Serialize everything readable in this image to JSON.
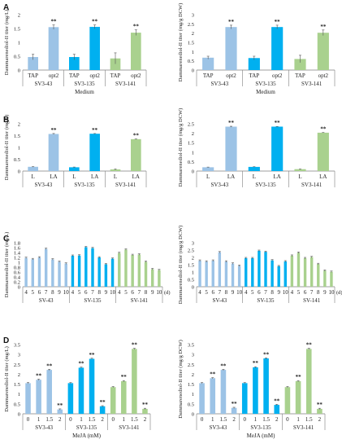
{
  "figure": {
    "panel_letters": [
      "A",
      "B",
      "C",
      "D"
    ],
    "colors": {
      "SV3-43": "#9cc3e6",
      "SV3-135": "#00b0f0",
      "SV3-141": "#a9d18e",
      "axis": "#7f7f7f",
      "grid_text": "#222222"
    }
  },
  "chart_data": [
    {
      "id": "A-left",
      "panel": "A",
      "type": "bar",
      "ylabel": "Dammarenediol-II titer (mg/L)",
      "ylim": [
        0,
        2
      ],
      "yticks": [
        "0",
        "0.5",
        "1",
        "1.5",
        "2"
      ],
      "categories": [
        "TAP",
        "opt2",
        "TAP",
        "opt2",
        "TAP",
        "opt2"
      ],
      "groups": [
        "SV3-43",
        "SV3-135",
        "SV3-141"
      ],
      "group_size": 2,
      "xlabel": "Medium",
      "values": [
        0.47,
        1.55,
        0.47,
        1.56,
        0.42,
        1.35
      ],
      "errors": [
        0.1,
        0.08,
        0.1,
        0.07,
        0.2,
        0.1
      ],
      "annotations": [
        "",
        "**",
        "",
        "**",
        "",
        "**"
      ]
    },
    {
      "id": "A-right",
      "panel": "A",
      "type": "bar",
      "ylabel": "Dammarenediol-II titer (mg/g DCW)",
      "ylim": [
        0,
        3
      ],
      "yticks": [
        "0",
        "0.5",
        "1",
        "1.5",
        "2",
        "2.5",
        "3"
      ],
      "categories": [
        "TAP",
        "opt2",
        "TAP",
        "opt2",
        "TAP",
        "opt2"
      ],
      "groups": [
        "SV3-43",
        "SV3-135",
        "SV3-141"
      ],
      "group_size": 2,
      "xlabel": "Medium",
      "values": [
        0.67,
        2.33,
        0.65,
        2.33,
        0.6,
        2.02
      ],
      "errors": [
        0.08,
        0.1,
        0.1,
        0.1,
        0.2,
        0.15
      ],
      "annotations": [
        "",
        "**",
        "",
        "**",
        "",
        "**"
      ]
    },
    {
      "id": "B-left",
      "panel": "B",
      "type": "bar",
      "ylabel": "Dammarenediol-II titer (mg/L)",
      "ylim": [
        0,
        2
      ],
      "yticks": [
        "0",
        "0.5",
        "1",
        "1.5",
        "2"
      ],
      "categories": [
        "L",
        "LA",
        "L",
        "LA",
        "L",
        "LA"
      ],
      "groups": [
        "SV3-43",
        "SV3-135",
        "SV3-141"
      ],
      "group_size": 2,
      "xlabel": "",
      "values": [
        0.18,
        1.57,
        0.16,
        1.58,
        0.07,
        1.35
      ],
      "errors": [
        0.01,
        0.02,
        0.01,
        0.01,
        0.02,
        0.01
      ],
      "annotations": [
        "",
        "**",
        "",
        "**",
        "",
        "**"
      ]
    },
    {
      "id": "B-right",
      "panel": "B",
      "type": "bar",
      "ylabel": "Dammarenediol-II titer (mg/g DCW)",
      "ylim": [
        0,
        2.5
      ],
      "yticks": [
        "0",
        "0.5",
        "1",
        "1.5",
        "2",
        "2.5"
      ],
      "categories": [
        "L",
        "LA",
        "L",
        "LA",
        "L",
        "LA"
      ],
      "groups": [
        "SV3-43",
        "SV3-135",
        "SV3-141"
      ],
      "group_size": 2,
      "xlabel": "",
      "values": [
        0.2,
        2.35,
        0.22,
        2.35,
        0.1,
        2.03
      ],
      "errors": [
        0.01,
        0.02,
        0.01,
        0.01,
        0.01,
        0.01
      ],
      "annotations": [
        "",
        "**",
        "",
        "**",
        "",
        "**"
      ]
    },
    {
      "id": "C-left",
      "panel": "C",
      "type": "bar",
      "ylabel": "Dammarenediol-II titer (mg/L)",
      "ylim": [
        0,
        1.8
      ],
      "yticks": [
        "0",
        "0.2",
        "0.4",
        "0.6",
        "0.8",
        "1",
        "1.2",
        "1.4",
        "1.6",
        "1.8"
      ],
      "categories": [
        "4",
        "5",
        "6",
        "7",
        "8",
        "9",
        "10",
        "4",
        "5",
        "6",
        "7",
        "8",
        "9",
        "10",
        "4",
        "5",
        "6",
        "7",
        "8",
        "9",
        "10"
      ],
      "groups": [
        "SV-43",
        "SV-135",
        "SV-141"
      ],
      "group_size": 7,
      "unit_label": "(d)",
      "xlabel": "",
      "values": [
        1.18,
        1.13,
        1.2,
        1.55,
        1.12,
        1.02,
        0.95,
        1.27,
        1.28,
        1.62,
        1.58,
        1.2,
        0.92,
        1.15,
        1.38,
        1.52,
        1.3,
        1.32,
        1.02,
        0.72,
        0.68
      ],
      "errors": [
        0.03,
        0.03,
        0.03,
        0.03,
        0.03,
        0.03,
        0.03,
        0.03,
        0.03,
        0.03,
        0.03,
        0.03,
        0.03,
        0.03,
        0.03,
        0.03,
        0.03,
        0.03,
        0.03,
        0.03,
        0.03
      ],
      "annotations": []
    },
    {
      "id": "C-right",
      "panel": "C",
      "type": "bar",
      "ylabel": "Dammarenediol-II titer (mg/g DCW)",
      "ylim": [
        0,
        3
      ],
      "yticks": [
        "0",
        "0.5",
        "1",
        "1.5",
        "2",
        "2.5",
        "3"
      ],
      "categories": [
        "4",
        "5",
        "6",
        "7",
        "8",
        "9",
        "10",
        "4",
        "5",
        "6",
        "7",
        "8",
        "9",
        "10",
        "4",
        "5",
        "6",
        "7",
        "8",
        "9",
        "10"
      ],
      "groups": [
        "SV-43",
        "SV-135",
        "SV-141"
      ],
      "group_size": 7,
      "unit_label": "(d)",
      "xlabel": "",
      "values": [
        1.78,
        1.72,
        1.78,
        2.35,
        1.72,
        1.58,
        1.43,
        1.95,
        1.95,
        2.45,
        2.38,
        1.8,
        1.4,
        1.73,
        2.12,
        2.32,
        1.95,
        2.02,
        1.55,
        1.1,
        1.02
      ],
      "errors": [
        0.05,
        0.05,
        0.05,
        0.05,
        0.05,
        0.05,
        0.05,
        0.05,
        0.05,
        0.05,
        0.05,
        0.05,
        0.05,
        0.05,
        0.05,
        0.05,
        0.05,
        0.05,
        0.05,
        0.05,
        0.05
      ],
      "annotations": []
    },
    {
      "id": "D-left",
      "panel": "D",
      "type": "bar",
      "ylabel": "Dammarenediol-II titer (mg/L)",
      "ylim": [
        0,
        3.5
      ],
      "yticks": [
        "0",
        "0.5",
        "1",
        "1.5",
        "2",
        "2.5",
        "3",
        "3.5"
      ],
      "categories": [
        "0",
        "1",
        "1.5",
        "2",
        "0",
        "1",
        "1.5",
        "2",
        "0",
        "1",
        "1.5",
        "2"
      ],
      "groups": [
        "SV3-43",
        "SV3-135",
        "SV3-141"
      ],
      "group_size": 4,
      "xlabel": "MeJA (mM)",
      "values": [
        1.55,
        1.72,
        2.22,
        0.22,
        1.55,
        2.33,
        2.78,
        0.38,
        1.35,
        1.65,
        3.28,
        0.25
      ],
      "errors": [
        0.03,
        0.03,
        0.03,
        0.03,
        0.03,
        0.03,
        0.03,
        0.03,
        0.03,
        0.03,
        0.03,
        0.03
      ],
      "annotations": [
        "",
        "**",
        "**",
        "**",
        "",
        "**",
        "**",
        "**",
        "",
        "**",
        "**",
        "**"
      ]
    },
    {
      "id": "D-right",
      "panel": "D",
      "type": "bar",
      "ylabel": "Dammarenediol-II titer (mg/g DCW)",
      "ylim": [
        0,
        3.5
      ],
      "yticks": [
        "0",
        "0.5",
        "1",
        "1.5",
        "2",
        "2.5",
        "3",
        "3.5"
      ],
      "categories": [
        "0",
        "1",
        "1.5",
        "2",
        "0",
        "1",
        "1.5",
        "2",
        "0",
        "1",
        "1.5",
        "2"
      ],
      "groups": [
        "SV3-43",
        "SV3-135",
        "SV3-141"
      ],
      "group_size": 4,
      "xlabel": "MeJA (mM)",
      "values": [
        1.55,
        1.8,
        2.22,
        0.3,
        1.55,
        2.35,
        2.8,
        0.45,
        1.35,
        1.65,
        3.28,
        0.25
      ],
      "errors": [
        0.03,
        0.03,
        0.03,
        0.03,
        0.03,
        0.03,
        0.03,
        0.03,
        0.03,
        0.03,
        0.03,
        0.03
      ],
      "annotations": [
        "",
        "**",
        "**",
        "**",
        "",
        "**",
        "**",
        "**",
        "",
        "**",
        "**",
        "**"
      ]
    }
  ]
}
